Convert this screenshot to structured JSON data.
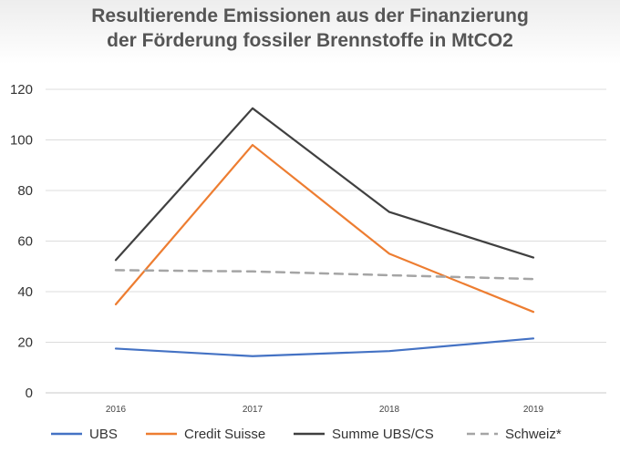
{
  "chart_data": {
    "type": "line",
    "title_line1": "Resultierende Emissionen aus der Finanzierung",
    "title_line2": "der Förderung fossiler Brennstoffe in MtCO2",
    "x": [
      "2016",
      "2017",
      "2018",
      "2019"
    ],
    "ylim": [
      0,
      120
    ],
    "yticks": [
      0,
      20,
      40,
      60,
      80,
      100,
      120
    ],
    "grid": true,
    "legend_position": "bottom",
    "series": [
      {
        "name": "UBS",
        "values": [
          17.5,
          14.5,
          16.5,
          21.5
        ],
        "color": "#4472c4",
        "dash": false
      },
      {
        "name": "Credit Suisse",
        "values": [
          35,
          98,
          55,
          32
        ],
        "color": "#ed7d31",
        "dash": false
      },
      {
        "name": "Summe UBS/CS",
        "values": [
          52.5,
          112.5,
          71.5,
          53.5
        ],
        "color": "#404040",
        "dash": false
      },
      {
        "name": "Schweiz*",
        "values": [
          48.5,
          48,
          46.5,
          45
        ],
        "color": "#a5a5a5",
        "dash": true
      }
    ]
  }
}
